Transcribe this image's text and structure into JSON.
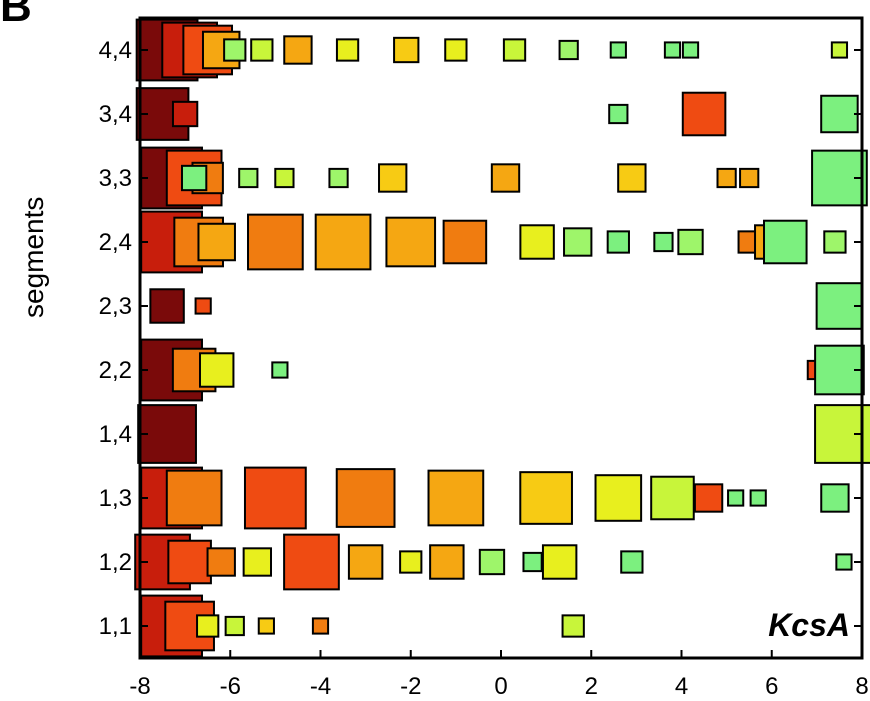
{
  "panel_label": "B",
  "chart_data": {
    "type": "scatter",
    "title": "",
    "xlabel": "",
    "ylabel": "segments",
    "annotation": "KcsA",
    "xlim": [
      -8,
      8
    ],
    "x_ticks": [
      -8,
      -6,
      -4,
      -2,
      0,
      2,
      4,
      6,
      8
    ],
    "y_categories": [
      "1,1",
      "1,2",
      "1,3",
      "1,4",
      "2,2",
      "2,3",
      "2,4",
      "3,3",
      "3,4",
      "4,4"
    ],
    "grid": false,
    "legend": "none",
    "marker": "square (size encodes magnitude, color encodes value from dark red to green)",
    "color_scale": [
      "#7a0a0a",
      "#c81e0c",
      "#ef4b12",
      "#f07c10",
      "#f5a712",
      "#f7cb14",
      "#e8ef1e",
      "#c8f53a",
      "#9ef56a",
      "#7cf07f"
    ],
    "series": [
      {
        "segment": "4,4",
        "points": [
          {
            "x": -7.4,
            "size": 1.0,
            "level": 0
          },
          {
            "x": -6.9,
            "size": 0.9,
            "level": 1
          },
          {
            "x": -6.5,
            "size": 0.8,
            "level": 2
          },
          {
            "x": -6.2,
            "size": 0.6,
            "level": 4
          },
          {
            "x": -5.9,
            "size": 0.35,
            "level": 8
          },
          {
            "x": -5.3,
            "size": 0.35,
            "level": 7
          },
          {
            "x": -4.5,
            "size": 0.45,
            "level": 4
          },
          {
            "x": -3.4,
            "size": 0.35,
            "level": 6
          },
          {
            "x": -2.1,
            "size": 0.4,
            "level": 5
          },
          {
            "x": -1.0,
            "size": 0.35,
            "level": 6
          },
          {
            "x": 0.3,
            "size": 0.35,
            "level": 7
          },
          {
            "x": 1.5,
            "size": 0.3,
            "level": 8
          },
          {
            "x": 2.6,
            "size": 0.25,
            "level": 9
          },
          {
            "x": 3.8,
            "size": 0.25,
            "level": 9
          },
          {
            "x": 4.2,
            "size": 0.25,
            "level": 9
          },
          {
            "x": 7.5,
            "size": 0.25,
            "level": 7
          }
        ]
      },
      {
        "segment": "3,4",
        "points": [
          {
            "x": -7.5,
            "size": 0.85,
            "level": 0
          },
          {
            "x": -7.0,
            "size": 0.4,
            "level": 1
          },
          {
            "x": 2.6,
            "size": 0.3,
            "level": 9
          },
          {
            "x": 4.5,
            "size": 0.7,
            "level": 2
          },
          {
            "x": 7.5,
            "size": 0.6,
            "level": 9
          }
        ]
      },
      {
        "segment": "3,3",
        "points": [
          {
            "x": -7.3,
            "size": 1.0,
            "level": 0
          },
          {
            "x": -6.8,
            "size": 0.9,
            "level": 2
          },
          {
            "x": -6.5,
            "size": 0.5,
            "level": 3
          },
          {
            "x": -6.8,
            "size": 0.4,
            "level": 9
          },
          {
            "x": -5.6,
            "size": 0.3,
            "level": 8
          },
          {
            "x": -4.8,
            "size": 0.3,
            "level": 7
          },
          {
            "x": -3.6,
            "size": 0.3,
            "level": 8
          },
          {
            "x": -2.4,
            "size": 0.45,
            "level": 5
          },
          {
            "x": 0.1,
            "size": 0.45,
            "level": 4
          },
          {
            "x": 2.9,
            "size": 0.45,
            "level": 5
          },
          {
            "x": 5.0,
            "size": 0.3,
            "level": 4
          },
          {
            "x": 5.5,
            "size": 0.3,
            "level": 4
          },
          {
            "x": 7.5,
            "size": 0.9,
            "level": 9
          }
        ]
      },
      {
        "segment": "2,4",
        "points": [
          {
            "x": -7.3,
            "size": 1.0,
            "level": 1
          },
          {
            "x": -6.7,
            "size": 0.8,
            "level": 3
          },
          {
            "x": -6.3,
            "size": 0.6,
            "level": 4
          },
          {
            "x": -5.0,
            "size": 0.9,
            "level": 3
          },
          {
            "x": -3.5,
            "size": 0.9,
            "level": 4
          },
          {
            "x": -2.0,
            "size": 0.8,
            "level": 4
          },
          {
            "x": -0.8,
            "size": 0.7,
            "level": 3
          },
          {
            "x": 0.8,
            "size": 0.55,
            "level": 6
          },
          {
            "x": 1.7,
            "size": 0.45,
            "level": 8
          },
          {
            "x": 2.6,
            "size": 0.35,
            "level": 9
          },
          {
            "x": 3.6,
            "size": 0.3,
            "level": 9
          },
          {
            "x": 4.2,
            "size": 0.4,
            "level": 8
          },
          {
            "x": 5.5,
            "size": 0.35,
            "level": 3
          },
          {
            "x": 6.0,
            "size": 0.55,
            "level": 4
          },
          {
            "x": 6.3,
            "size": 0.7,
            "level": 9
          },
          {
            "x": 7.4,
            "size": 0.35,
            "level": 8
          }
        ]
      },
      {
        "segment": "2,3",
        "points": [
          {
            "x": -7.4,
            "size": 0.55,
            "level": 0
          },
          {
            "x": -6.6,
            "size": 0.25,
            "level": 2
          },
          {
            "x": 7.5,
            "size": 0.75,
            "level": 9
          }
        ]
      },
      {
        "segment": "2,2",
        "points": [
          {
            "x": -7.3,
            "size": 1.0,
            "level": 0
          },
          {
            "x": -6.8,
            "size": 0.7,
            "level": 3
          },
          {
            "x": -6.3,
            "size": 0.55,
            "level": 6
          },
          {
            "x": -4.9,
            "size": 0.25,
            "level": 9
          },
          {
            "x": 7.0,
            "size": 0.3,
            "level": 2
          },
          {
            "x": 7.5,
            "size": 0.8,
            "level": 9
          }
        ]
      },
      {
        "segment": "1,4",
        "points": [
          {
            "x": -7.4,
            "size": 0.95,
            "level": 0
          },
          {
            "x": 7.6,
            "size": 0.95,
            "level": 7
          }
        ]
      },
      {
        "segment": "1,3",
        "points": [
          {
            "x": -7.3,
            "size": 1.0,
            "level": 1
          },
          {
            "x": -6.8,
            "size": 0.9,
            "level": 3
          },
          {
            "x": -5.0,
            "size": 1.0,
            "level": 2
          },
          {
            "x": -3.0,
            "size": 0.95,
            "level": 3
          },
          {
            "x": -1.0,
            "size": 0.9,
            "level": 4
          },
          {
            "x": 1.0,
            "size": 0.85,
            "level": 5
          },
          {
            "x": 2.6,
            "size": 0.75,
            "level": 6
          },
          {
            "x": 3.8,
            "size": 0.7,
            "level": 7
          },
          {
            "x": 4.6,
            "size": 0.45,
            "level": 2
          },
          {
            "x": 5.2,
            "size": 0.25,
            "level": 9
          },
          {
            "x": 5.7,
            "size": 0.25,
            "level": 9
          },
          {
            "x": 7.4,
            "size": 0.45,
            "level": 9
          }
        ]
      },
      {
        "segment": "1,2",
        "points": [
          {
            "x": -7.5,
            "size": 0.9,
            "level": 1
          },
          {
            "x": -6.9,
            "size": 0.7,
            "level": 2
          },
          {
            "x": -6.2,
            "size": 0.45,
            "level": 3
          },
          {
            "x": -5.4,
            "size": 0.45,
            "level": 6
          },
          {
            "x": -4.2,
            "size": 0.9,
            "level": 2
          },
          {
            "x": -3.0,
            "size": 0.55,
            "level": 4
          },
          {
            "x": -2.0,
            "size": 0.35,
            "level": 6
          },
          {
            "x": -1.2,
            "size": 0.55,
            "level": 4
          },
          {
            "x": -0.2,
            "size": 0.4,
            "level": 8
          },
          {
            "x": 0.7,
            "size": 0.3,
            "level": 9
          },
          {
            "x": 1.3,
            "size": 0.55,
            "level": 6
          },
          {
            "x": 2.9,
            "size": 0.35,
            "level": 9
          },
          {
            "x": 7.6,
            "size": 0.25,
            "level": 9
          }
        ]
      },
      {
        "segment": "1,1",
        "points": [
          {
            "x": -7.3,
            "size": 1.0,
            "level": 1
          },
          {
            "x": -6.9,
            "size": 0.8,
            "level": 2
          },
          {
            "x": -6.5,
            "size": 0.35,
            "level": 6
          },
          {
            "x": -5.9,
            "size": 0.3,
            "level": 7
          },
          {
            "x": -5.2,
            "size": 0.25,
            "level": 5
          },
          {
            "x": -4.0,
            "size": 0.25,
            "level": 3
          },
          {
            "x": 1.6,
            "size": 0.35,
            "level": 7
          }
        ]
      }
    ]
  }
}
